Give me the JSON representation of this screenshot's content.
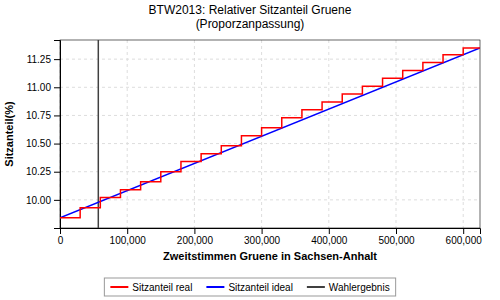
{
  "chart_data": {
    "type": "line",
    "title": "BTW2013: Relativer Sitzanteil Gruene\n(Proporzanpassung)",
    "xlabel": "Zweitstimmen Gruene in Sachsen-Anhalt",
    "ylabel": "Sitzanteil(%)",
    "xlim": [
      0,
      625000
    ],
    "ylim": [
      9.75,
      11.42
    ],
    "xticks": [
      0,
      {
        "value": 100000,
        "label": "100,000"
      },
      {
        "value": 200000,
        "label": "200,000"
      },
      {
        "value": 300000,
        "label": "300,000"
      },
      {
        "value": 400000,
        "label": "400,000"
      },
      {
        "value": 500000,
        "label": "500,000"
      },
      {
        "value": 600000,
        "label": "600,000"
      }
    ],
    "yticks": [
      {
        "value": 10.0,
        "label": "10.00"
      },
      10.25,
      {
        "value": 10.5,
        "label": "10.50"
      },
      10.75,
      {
        "value": 11.0,
        "label": "11.00"
      },
      11.25
    ],
    "grid": true,
    "legend": "bottom",
    "series": [
      {
        "name": "Sitzanteil real",
        "color": "red",
        "x": [
          0,
          30000,
          30001,
          60000,
          60001,
          90000,
          90001,
          120000,
          120001,
          150000,
          150001,
          180000,
          180001,
          210000,
          210001,
          240000,
          240001,
          270000,
          270001,
          300000,
          300001,
          330000,
          330001,
          360000,
          360001,
          390000,
          390001,
          420000,
          420001,
          450000,
          450001,
          480000,
          480001,
          510000,
          510001,
          540000,
          540001,
          570000,
          570001,
          600000,
          600001,
          625000
        ],
        "values": [
          9.84,
          9.84,
          9.93,
          9.93,
          10.02,
          10.02,
          10.09,
          10.09,
          10.16,
          10.16,
          10.25,
          10.25,
          10.34,
          10.34,
          10.41,
          10.41,
          10.48,
          10.48,
          10.57,
          10.57,
          10.64,
          10.64,
          10.73,
          10.73,
          10.8,
          10.8,
          10.87,
          10.87,
          10.94,
          10.94,
          11.01,
          11.01,
          11.08,
          11.08,
          11.15,
          11.15,
          11.22,
          11.22,
          11.29,
          11.29,
          11.35,
          11.35
        ]
      },
      {
        "name": "Sitzanteil ideal",
        "color": "blue",
        "x": [
          0,
          625000
        ],
        "values": [
          9.84,
          11.35
        ]
      },
      {
        "name": "Wahlergebnis",
        "type": "vline",
        "color": "#404040",
        "x": [
          57000
        ]
      }
    ]
  }
}
